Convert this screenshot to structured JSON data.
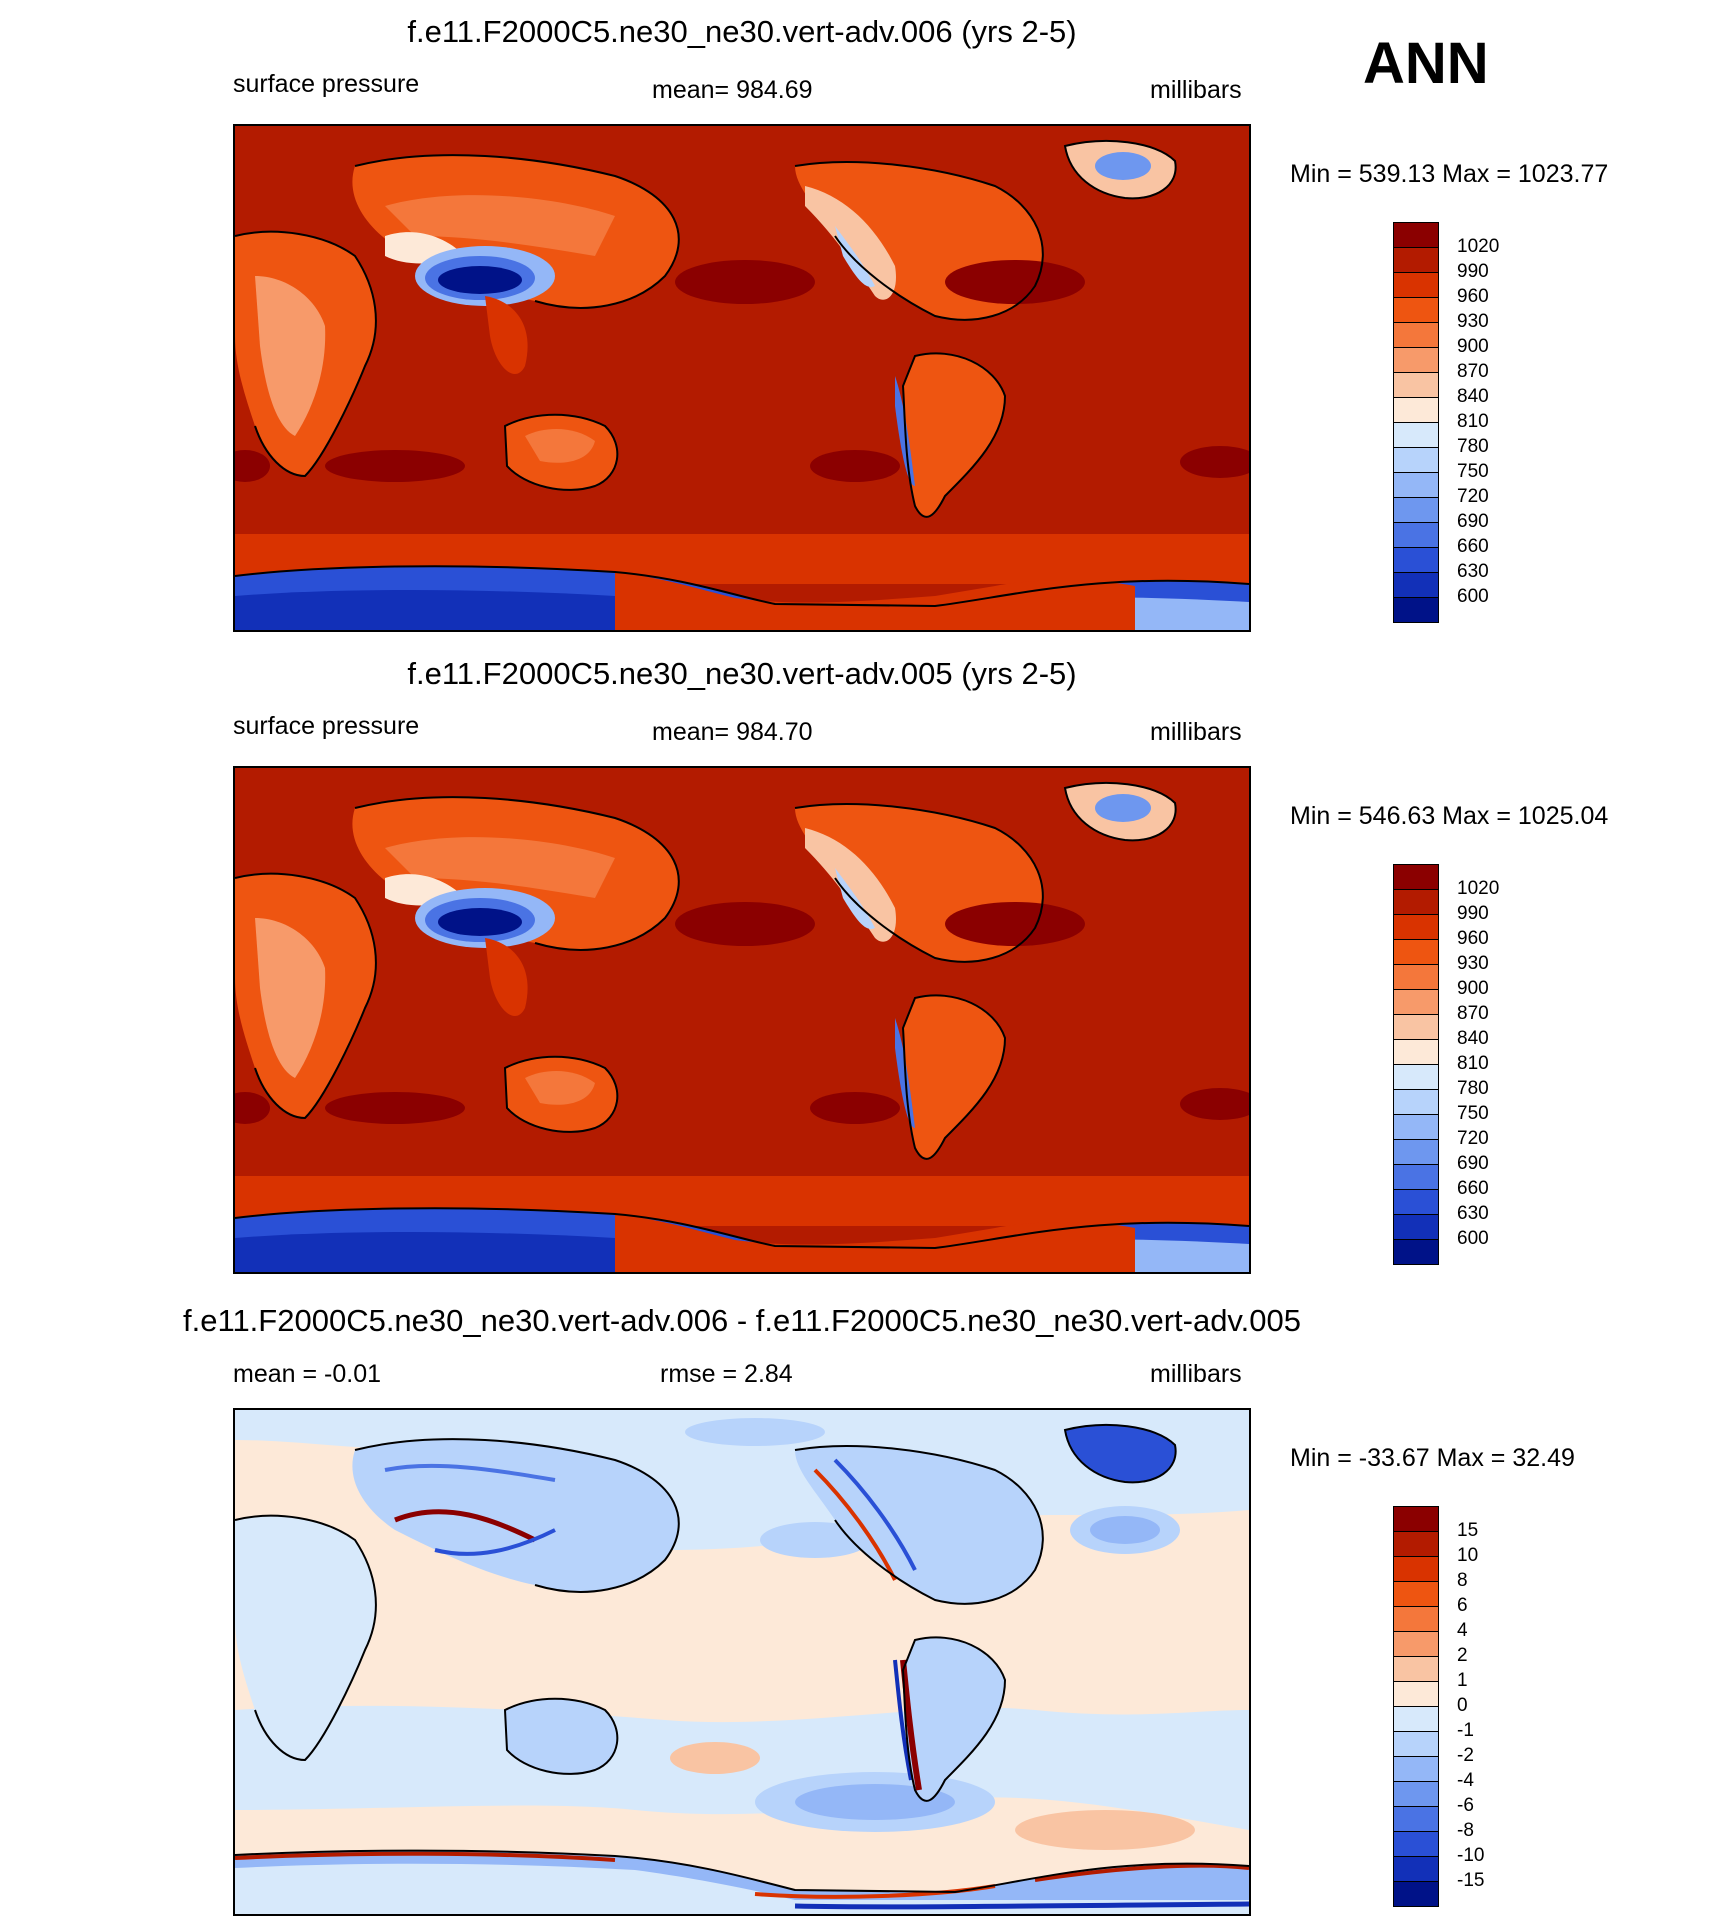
{
  "season": "ANN",
  "panels": [
    {
      "title": "f.e11.F2000C5.ne30_ne30.vert-adv.006 (yrs 2-5)",
      "left_label": "surface pressure",
      "center_label": "mean= 984.69",
      "right_label": "millibars",
      "minmax": "Min = 539.13 Max = 1023.77",
      "colorbar_labels": [
        "1020",
        "990",
        "960",
        "930",
        "900",
        "870",
        "840",
        "810",
        "780",
        "750",
        "720",
        "690",
        "660",
        "630",
        "600"
      ],
      "colorbar_colors": [
        "#8b0000",
        "#b31b00",
        "#d93300",
        "#ee5511",
        "#f4773b",
        "#f79a6a",
        "#f9c4a3",
        "#fde9d8",
        "#d7e9fb",
        "#b7d3fb",
        "#94b7f7",
        "#6e97ef",
        "#4a73e4",
        "#2a50d6",
        "#1230b8",
        "#001288"
      ]
    },
    {
      "title": "f.e11.F2000C5.ne30_ne30.vert-adv.005 (yrs 2-5)",
      "left_label": "surface pressure",
      "center_label": "mean= 984.70",
      "right_label": "millibars",
      "minmax": "Min = 546.63 Max = 1025.04",
      "colorbar_labels": [
        "1020",
        "990",
        "960",
        "930",
        "900",
        "870",
        "840",
        "810",
        "780",
        "750",
        "720",
        "690",
        "660",
        "630",
        "600"
      ],
      "colorbar_colors": [
        "#8b0000",
        "#b31b00",
        "#d93300",
        "#ee5511",
        "#f4773b",
        "#f79a6a",
        "#f9c4a3",
        "#fde9d8",
        "#d7e9fb",
        "#b7d3fb",
        "#94b7f7",
        "#6e97ef",
        "#4a73e4",
        "#2a50d6",
        "#1230b8",
        "#001288"
      ]
    },
    {
      "title": "f.e11.F2000C5.ne30_ne30.vert-adv.006 - f.e11.F2000C5.ne30_ne30.vert-adv.005",
      "left_label": "mean =  -0.01",
      "center_label": "rmse =   2.84",
      "right_label": "millibars",
      "minmax": "Min = -33.67 Max =  32.49",
      "colorbar_labels": [
        "15",
        "10",
        "8",
        "6",
        "4",
        "2",
        "1",
        "0",
        "-1",
        "-2",
        "-4",
        "-6",
        "-8",
        "-10",
        "-15"
      ],
      "colorbar_colors": [
        "#8b0000",
        "#b31b00",
        "#d93300",
        "#ee5511",
        "#f4773b",
        "#f79a6a",
        "#f9c4a3",
        "#fde9d8",
        "#d7e9fb",
        "#b7d3fb",
        "#94b7f7",
        "#6e97ef",
        "#4a73e4",
        "#2a50d6",
        "#1230b8",
        "#001288"
      ]
    }
  ]
}
